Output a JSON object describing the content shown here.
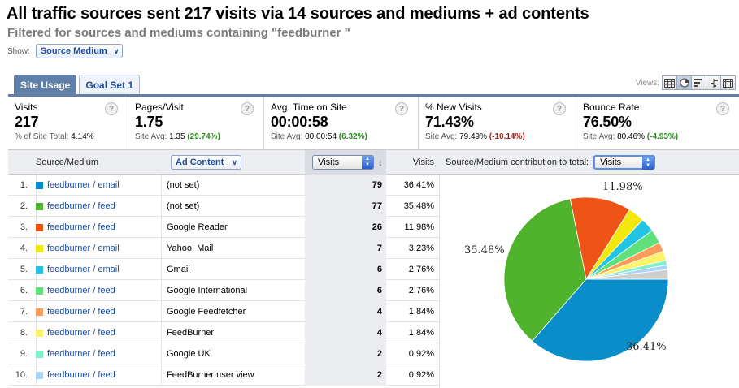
{
  "header": {
    "title": "All traffic sources sent 217 visits via 14 sources and mediums + ad contents",
    "subtitle": "Filtered for sources and mediums containing \"feedburner \"",
    "show_label": "Show:",
    "show_value": "Source Medium"
  },
  "tabs": [
    {
      "label": "Site Usage",
      "active": true
    },
    {
      "label": "Goal Set 1",
      "active": false
    }
  ],
  "views": {
    "label": "Views:",
    "buttons": [
      "table-view-icon",
      "pie-view-icon",
      "performance-view-icon",
      "comparison-view-icon",
      "pivot-view-icon"
    ],
    "active": "pie-view-icon"
  },
  "metrics": [
    {
      "label": "Visits",
      "value": "217",
      "sub_prefix": "% of Site Total: ",
      "sub_value": "4.14%",
      "sub_delta": "",
      "delta_kind": ""
    },
    {
      "label": "Pages/Visit",
      "value": "1.75",
      "sub_prefix": "Site Avg: ",
      "sub_value": "1.35",
      "sub_delta": "(29.74%)",
      "delta_kind": "pos"
    },
    {
      "label": "Avg. Time on Site",
      "value": "00:00:58",
      "sub_prefix": "Site Avg: ",
      "sub_value": "00:00:54",
      "sub_delta": "(6.32%)",
      "delta_kind": "pos"
    },
    {
      "label": "% New Visits",
      "value": "71.43%",
      "sub_prefix": "Site Avg: ",
      "sub_value": "79.49%",
      "sub_delta": "(-10.14%)",
      "delta_kind": "neg"
    },
    {
      "label": "Bounce Rate",
      "value": "76.50%",
      "sub_prefix": "Site Avg: ",
      "sub_value": "80.46%",
      "sub_delta": "(-4.93%)",
      "delta_kind": "pos"
    }
  ],
  "table": {
    "col_source": "Source/Medium",
    "col_ad": "Ad Content",
    "col_sort_select": "Visits",
    "col_pct": "Visits",
    "pie_caption": "Source/Medium contribution to total:",
    "pie_select": "Visits",
    "rows": [
      {
        "idx": "1.",
        "source": "feedburner / email",
        "ad": "(not set)",
        "visits": "79",
        "pct": "36.41%",
        "color": "#0a8ec9"
      },
      {
        "idx": "2.",
        "source": "feedburner / feed",
        "ad": "(not set)",
        "visits": "77",
        "pct": "35.48%",
        "color": "#4fb32d"
      },
      {
        "idx": "3.",
        "source": "feedburner / feed",
        "ad": "Google Reader",
        "visits": "26",
        "pct": "11.98%",
        "color": "#ee5416"
      },
      {
        "idx": "4.",
        "source": "feedburner / email",
        "ad": "Yahoo! Mail",
        "visits": "7",
        "pct": "3.23%",
        "color": "#f2e80c"
      },
      {
        "idx": "5.",
        "source": "feedburner / email",
        "ad": "Gmail",
        "visits": "6",
        "pct": "2.76%",
        "color": "#22c3e4"
      },
      {
        "idx": "6.",
        "source": "feedburner / feed",
        "ad": "Google International",
        "visits": "6",
        "pct": "2.76%",
        "color": "#5fe07a"
      },
      {
        "idx": "7.",
        "source": "feedburner / feed",
        "ad": "Google Feedfetcher",
        "visits": "4",
        "pct": "1.84%",
        "color": "#fb9c5a"
      },
      {
        "idx": "8.",
        "source": "feedburner / feed",
        "ad": "FeedBurner",
        "visits": "4",
        "pct": "1.84%",
        "color": "#fbf26a"
      },
      {
        "idx": "9.",
        "source": "feedburner / feed",
        "ad": "Google UK",
        "visits": "2",
        "pct": "0.92%",
        "color": "#7ff0c9"
      },
      {
        "idx": "10.",
        "source": "feedburner / feed",
        "ad": "FeedBurner user view",
        "visits": "2",
        "pct": "0.92%",
        "color": "#a9d4f5"
      }
    ]
  },
  "chart_data": {
    "type": "pie",
    "categories": [
      "feedburner / email (not set)",
      "feedburner / feed (not set)",
      "feedburner / feed Google Reader",
      "feedburner / email Yahoo! Mail",
      "feedburner / email Gmail",
      "feedburner / feed Google International",
      "feedburner / feed Google Feedfetcher",
      "feedburner / feed FeedBurner",
      "feedburner / feed Google UK",
      "feedburner / feed FeedBurner user view",
      "other"
    ],
    "values": [
      36.41,
      35.48,
      11.98,
      3.23,
      2.76,
      2.76,
      1.84,
      1.84,
      0.92,
      0.92,
      1.86
    ],
    "colors": [
      "#0a8ec9",
      "#4fb32d",
      "#ee5416",
      "#f2e80c",
      "#22c3e4",
      "#5fe07a",
      "#fb9c5a",
      "#fbf26a",
      "#7ff0c9",
      "#a9d4f5",
      "#cfcfcf"
    ],
    "labels": [
      "36.41%",
      "35.48%",
      "11.98%"
    ]
  }
}
